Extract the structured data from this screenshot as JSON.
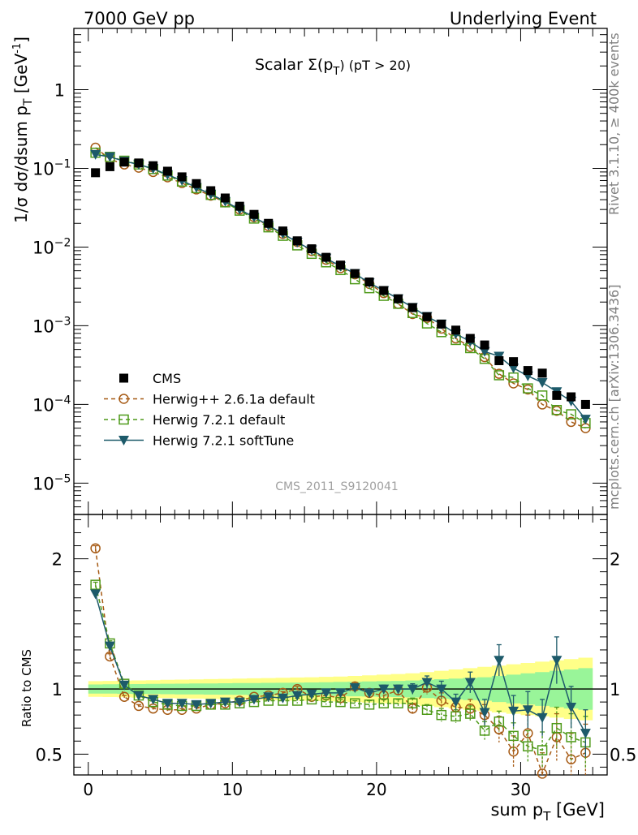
{
  "header": {
    "left": "7000 GeV pp",
    "right": "Underlying Event"
  },
  "side_text": {
    "upper": "Rivet 3.1.10, ≥ 400k events",
    "lower": "mcplots.cern.ch [arXiv:1306.3436]"
  },
  "watermark": "CMS_2011_S9120041",
  "colors": {
    "cms": "#000000",
    "herwigpp": "#a65a14",
    "herwig721": "#4f9a1a",
    "softtune": "#1d5a6a",
    "band_inner": "#99f599",
    "band_outer": "#ffff88"
  },
  "chart_data": [
    {
      "type": "scatter",
      "panel": "main",
      "title": "Scalar Σ(pT) (pT > 20)",
      "title_parts": {
        "main": "Scalar Σ(p",
        "sub": "T",
        "rest": ") (pT > 20)"
      },
      "ylabel": "1/σ dσ/dsum pT [GeV⁻¹]",
      "ylabel_parts": {
        "a": "1/σ dσ/dsum p",
        "sub": "T",
        "b": " [GeV",
        "sup": "-1",
        "c": "]"
      },
      "yscale": "log",
      "xlim": [
        -1,
        36
      ],
      "ylim": [
        4e-06,
        6
      ],
      "ytick_labels": [
        {
          "value": 1e-05,
          "base": "10",
          "exp": "−5"
        },
        {
          "value": 0.0001,
          "base": "10",
          "exp": "−4"
        },
        {
          "value": 0.001,
          "base": "10",
          "exp": "−3"
        },
        {
          "value": 0.01,
          "base": "10",
          "exp": "−2"
        },
        {
          "value": 0.1,
          "base": "10",
          "exp": "−1"
        },
        {
          "value": 1,
          "base": "1",
          "exp": ""
        }
      ],
      "legend_position": "lower-left",
      "x": [
        0.5,
        1.5,
        2.5,
        3.5,
        4.5,
        5.5,
        6.5,
        7.5,
        8.5,
        9.5,
        10.5,
        11.5,
        12.5,
        13.5,
        14.5,
        15.5,
        16.5,
        17.5,
        18.5,
        19.5,
        20.5,
        21.5,
        22.5,
        23.5,
        24.5,
        25.5,
        26.5,
        27.5,
        28.5,
        29.5,
        30.5,
        31.5,
        32.5,
        33.5,
        34.5
      ],
      "series": [
        {
          "name": "CMS",
          "marker": "filled-square",
          "values": [
            0.088,
            0.105,
            0.12,
            0.117,
            0.108,
            0.092,
            0.078,
            0.064,
            0.052,
            0.042,
            0.033,
            0.026,
            0.02,
            0.016,
            0.012,
            0.0095,
            0.0074,
            0.0059,
            0.0046,
            0.0036,
            0.0028,
            0.0022,
            0.0017,
            0.0013,
            0.00105,
            0.00088,
            0.00069,
            0.00057,
            0.00036,
            0.00035,
            0.00027,
            0.00025,
            0.00013,
            0.000125,
            0.0001
          ]
        },
        {
          "name": "Herwig++ 2.6.1a default",
          "marker": "open-circle",
          "values": [
            0.183,
            0.131,
            0.112,
            0.102,
            0.09,
            0.077,
            0.065,
            0.054,
            0.045,
            0.037,
            0.03,
            0.024,
            0.0185,
            0.0147,
            0.0116,
            0.0089,
            0.0069,
            0.0054,
            0.0045,
            0.0034,
            0.0026,
            0.0019,
            0.00141,
            0.00126,
            0.00092,
            0.00069,
            0.00054,
            0.0004,
            0.000245,
            0.000185,
            0.000155,
            0.0001,
            8.3e-05,
            6e-05,
            5e-05
          ]
        },
        {
          "name": "Herwig 7.2.1 default",
          "marker": "open-square",
          "values": [
            0.158,
            0.14,
            0.125,
            0.112,
            0.098,
            0.081,
            0.068,
            0.056,
            0.046,
            0.037,
            0.029,
            0.023,
            0.0178,
            0.0139,
            0.0105,
            0.0082,
            0.0064,
            0.0051,
            0.0039,
            0.003,
            0.0024,
            0.0019,
            0.00145,
            0.00107,
            0.00083,
            0.00066,
            0.00052,
            0.00038,
            0.000235,
            0.00022,
            0.00016,
            0.00013,
            8.5e-05,
            7.5e-05,
            5.8e-05
          ]
        },
        {
          "name": "Herwig 7.2.1 softTune",
          "marker": "filled-triangle-down",
          "line": "solid",
          "values": [
            0.15,
            0.14,
            0.123,
            0.112,
            0.099,
            0.083,
            0.07,
            0.057,
            0.047,
            0.038,
            0.03,
            0.024,
            0.0189,
            0.0148,
            0.0115,
            0.0092,
            0.0072,
            0.0057,
            0.0046,
            0.0035,
            0.0028,
            0.0022,
            0.00171,
            0.00131,
            0.00105,
            0.00079,
            0.00063,
            0.00047,
            0.00041,
            0.00029,
            0.00023,
            0.00019,
            0.000145,
            0.00011,
            6.5e-05
          ]
        }
      ]
    },
    {
      "type": "line",
      "panel": "ratio",
      "ylabel": "Ratio to CMS",
      "xlabel": "sum pT [GeV]",
      "xlabel_parts": {
        "a": "sum p",
        "sub": "T",
        "b": " [GeV]"
      },
      "xlim": [
        -1,
        36
      ],
      "ylim": [
        0.34,
        2.34
      ],
      "xtick_labels": [
        "0",
        "10",
        "20",
        "30"
      ],
      "ytick_labels": [
        "0.5",
        "1",
        "2"
      ],
      "x": [
        0.5,
        1.5,
        2.5,
        3.5,
        4.5,
        5.5,
        6.5,
        7.5,
        8.5,
        9.5,
        10.5,
        11.5,
        12.5,
        13.5,
        14.5,
        15.5,
        16.5,
        17.5,
        18.5,
        19.5,
        20.5,
        21.5,
        22.5,
        23.5,
        24.5,
        25.5,
        26.5,
        27.5,
        28.5,
        29.5,
        30.5,
        31.5,
        32.5,
        33.5,
        34.5
      ],
      "band_inner_halfwidth": [
        0.035,
        0.036,
        0.037,
        0.038,
        0.039,
        0.04,
        0.041,
        0.042,
        0.043,
        0.044,
        0.045,
        0.046,
        0.047,
        0.048,
        0.049,
        0.05,
        0.052,
        0.054,
        0.056,
        0.058,
        0.06,
        0.062,
        0.065,
        0.07,
        0.075,
        0.08,
        0.085,
        0.09,
        0.1,
        0.11,
        0.12,
        0.13,
        0.14,
        0.15,
        0.16
      ],
      "band_outer_halfwidth": [
        0.06,
        0.062,
        0.064,
        0.066,
        0.068,
        0.07,
        0.072,
        0.074,
        0.076,
        0.078,
        0.08,
        0.082,
        0.084,
        0.086,
        0.088,
        0.09,
        0.093,
        0.096,
        0.1,
        0.105,
        0.11,
        0.115,
        0.12,
        0.13,
        0.14,
        0.15,
        0.16,
        0.17,
        0.18,
        0.19,
        0.2,
        0.21,
        0.22,
        0.23,
        0.24
      ],
      "series": [
        {
          "name": "Herwig++ 2.6.1a default",
          "marker": "open-circle",
          "values": [
            2.08,
            1.25,
            0.94,
            0.87,
            0.85,
            0.84,
            0.84,
            0.85,
            0.88,
            0.89,
            0.91,
            0.94,
            0.95,
            0.97,
            1.0,
            0.94,
            0.95,
            0.93,
            1.02,
            0.97,
            0.95,
            0.99,
            0.85,
            1.01,
            0.91,
            0.86,
            0.85,
            0.8,
            0.69,
            0.52,
            0.66,
            0.35,
            0.63,
            0.46,
            0.51
          ],
          "errors": [
            0.02,
            0.02,
            0.01,
            0.01,
            0.01,
            0.01,
            0.01,
            0.01,
            0.01,
            0.01,
            0.01,
            0.01,
            0.01,
            0.01,
            0.02,
            0.02,
            0.02,
            0.02,
            0.03,
            0.03,
            0.03,
            0.04,
            0.04,
            0.05,
            0.06,
            0.06,
            0.07,
            0.08,
            0.1,
            0.12,
            0.14,
            0.16,
            0.18,
            0.2,
            0.22
          ]
        },
        {
          "name": "Herwig 7.2.1 default",
          "marker": "open-square",
          "values": [
            1.8,
            1.35,
            1.04,
            0.95,
            0.9,
            0.88,
            0.87,
            0.87,
            0.88,
            0.88,
            0.89,
            0.9,
            0.91,
            0.91,
            0.91,
            0.92,
            0.9,
            0.9,
            0.89,
            0.88,
            0.89,
            0.89,
            0.89,
            0.84,
            0.8,
            0.79,
            0.81,
            0.68,
            0.75,
            0.64,
            0.56,
            0.53,
            0.7,
            0.63,
            0.59
          ],
          "errors": [
            0.02,
            0.02,
            0.01,
            0.01,
            0.01,
            0.01,
            0.01,
            0.01,
            0.01,
            0.01,
            0.01,
            0.01,
            0.01,
            0.01,
            0.02,
            0.02,
            0.02,
            0.02,
            0.02,
            0.03,
            0.03,
            0.03,
            0.04,
            0.04,
            0.05,
            0.05,
            0.06,
            0.07,
            0.08,
            0.1,
            0.12,
            0.14,
            0.16,
            0.18,
            0.2
          ]
        },
        {
          "name": "Herwig 7.2.1 softTune",
          "marker": "filled-triangle-down",
          "line": "solid",
          "values": [
            1.73,
            1.33,
            1.03,
            0.95,
            0.92,
            0.89,
            0.89,
            0.88,
            0.89,
            0.9,
            0.9,
            0.92,
            0.94,
            0.93,
            0.95,
            0.96,
            0.97,
            0.97,
            1.01,
            0.97,
            1.0,
            1.0,
            1.0,
            1.05,
            1.0,
            0.9,
            1.05,
            0.82,
            1.22,
            0.83,
            0.84,
            0.78,
            1.22,
            0.86,
            0.66
          ],
          "errors": [
            0.02,
            0.02,
            0.01,
            0.01,
            0.01,
            0.01,
            0.01,
            0.01,
            0.01,
            0.01,
            0.01,
            0.01,
            0.01,
            0.01,
            0.02,
            0.02,
            0.02,
            0.02,
            0.02,
            0.03,
            0.03,
            0.03,
            0.04,
            0.05,
            0.06,
            0.06,
            0.08,
            0.1,
            0.12,
            0.12,
            0.14,
            0.14,
            0.18,
            0.16,
            0.18
          ]
        }
      ]
    }
  ]
}
